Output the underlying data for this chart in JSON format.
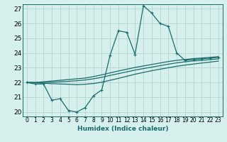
{
  "title": "",
  "xlabel": "Humidex (Indice chaleur)",
  "ylabel": "",
  "bg_color": "#d6f0ee",
  "line_color": "#1a6b6b",
  "grid_color": "#b8d8d6",
  "xlim": [
    -0.5,
    23.5
  ],
  "ylim": [
    19.7,
    27.3
  ],
  "yticks": [
    20,
    21,
    22,
    23,
    24,
    25,
    26,
    27
  ],
  "xticks": [
    0,
    1,
    2,
    3,
    4,
    5,
    6,
    7,
    8,
    9,
    10,
    11,
    12,
    13,
    14,
    15,
    16,
    17,
    18,
    19,
    20,
    21,
    22,
    23
  ],
  "s1_x": [
    0,
    1,
    2,
    3,
    4,
    5,
    6,
    7,
    8,
    9,
    10,
    11,
    12,
    13,
    14,
    15,
    16,
    17,
    18,
    19,
    20,
    21,
    22,
    23
  ],
  "s1_y": [
    22.0,
    21.9,
    21.9,
    20.8,
    20.9,
    20.1,
    20.0,
    20.3,
    21.1,
    21.5,
    23.85,
    25.5,
    25.4,
    23.9,
    27.2,
    26.7,
    26.0,
    25.8,
    24.0,
    23.5,
    23.55,
    23.6,
    23.65,
    23.7
  ],
  "s2_x": [
    0,
    1,
    2,
    3,
    4,
    5,
    6,
    7,
    8,
    9,
    10,
    11,
    12,
    13,
    14,
    15,
    16,
    17,
    18,
    19,
    20,
    21,
    22,
    23
  ],
  "s2_y": [
    22.0,
    22.0,
    22.05,
    22.1,
    22.15,
    22.2,
    22.25,
    22.3,
    22.4,
    22.52,
    22.65,
    22.78,
    22.9,
    23.02,
    23.12,
    23.22,
    23.32,
    23.42,
    23.5,
    23.56,
    23.62,
    23.66,
    23.7,
    23.75
  ],
  "s3_x": [
    0,
    1,
    2,
    3,
    4,
    5,
    6,
    7,
    8,
    9,
    10,
    11,
    12,
    13,
    14,
    15,
    16,
    17,
    18,
    19,
    20,
    21,
    22,
    23
  ],
  "s3_y": [
    22.0,
    22.0,
    22.0,
    22.02,
    22.05,
    22.08,
    22.12,
    22.17,
    22.25,
    22.35,
    22.48,
    22.6,
    22.72,
    22.84,
    22.94,
    23.04,
    23.14,
    23.24,
    23.33,
    23.4,
    23.46,
    23.5,
    23.55,
    23.6
  ],
  "s4_x": [
    0,
    1,
    2,
    3,
    4,
    5,
    6,
    7,
    8,
    9,
    10,
    11,
    12,
    13,
    14,
    15,
    16,
    17,
    18,
    19,
    20,
    21,
    22,
    23
  ],
  "s4_y": [
    22.0,
    21.98,
    21.95,
    21.92,
    21.9,
    21.88,
    21.85,
    21.88,
    21.93,
    22.02,
    22.15,
    22.28,
    22.42,
    22.56,
    22.68,
    22.8,
    22.9,
    23.0,
    23.1,
    23.18,
    23.25,
    23.32,
    23.38,
    23.45
  ]
}
